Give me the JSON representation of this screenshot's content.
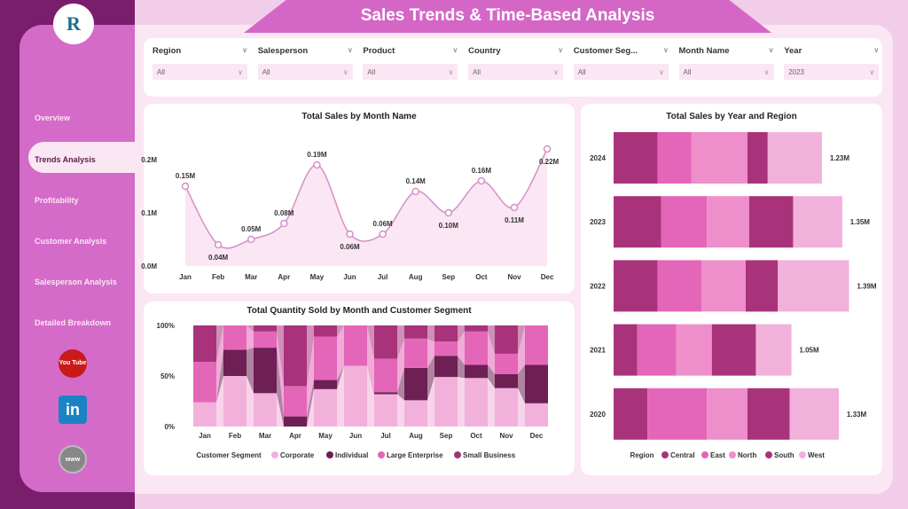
{
  "header": {
    "title": "Sales Trends & Time-Based Analysis",
    "logo_text": "R"
  },
  "sidebar": {
    "items": [
      {
        "label": "Overview"
      },
      {
        "label": "Trends Analysis",
        "active": true
      },
      {
        "label": "Profitability"
      },
      {
        "label": "Customer Analysis"
      },
      {
        "label": "Salesperson Analysis"
      },
      {
        "label": "Detailed Breakdown"
      }
    ],
    "social": [
      {
        "icon": "youtube-icon",
        "label": "You Tube"
      },
      {
        "icon": "linkedin-icon",
        "label": "in"
      },
      {
        "icon": "globe-icon",
        "label": "www"
      }
    ]
  },
  "filters": [
    {
      "label": "Region",
      "value": "All"
    },
    {
      "label": "Salesperson",
      "value": "All"
    },
    {
      "label": "Product",
      "value": "All"
    },
    {
      "label": "Country",
      "value": "All"
    },
    {
      "label": "Customer Seg...",
      "value": "All"
    },
    {
      "label": "Month Name",
      "value": "All"
    },
    {
      "label": "Year",
      "value": "2023"
    }
  ],
  "colors": {
    "sidebar": "#d46bc9",
    "dark": "#791d6c",
    "central": "#a8337b",
    "east": "#e466b8",
    "north": "#ee8fcc",
    "south": "#a8337b",
    "west": "#f2b1da",
    "corporate": "#f2b1da",
    "individual": "#6e1f54",
    "large_enterprise": "#e466b8",
    "small_business": "#a8337b",
    "line": "#d48fc8"
  },
  "chart_data": [
    {
      "type": "line",
      "title": "Total Sales by Month Name",
      "categories": [
        "Jan",
        "Feb",
        "Mar",
        "Apr",
        "May",
        "Jun",
        "Jul",
        "Aug",
        "Sep",
        "Oct",
        "Nov",
        "Dec"
      ],
      "values": [
        0.15,
        0.04,
        0.05,
        0.08,
        0.19,
        0.06,
        0.06,
        0.14,
        0.1,
        0.16,
        0.11,
        0.22
      ],
      "labels": [
        "0.15M",
        "0.04M",
        "0.05M",
        "0.08M",
        "0.19M",
        "0.06M",
        "0.06M",
        "0.14M",
        "0.10M",
        "0.16M",
        "0.11M",
        "0.22M"
      ],
      "yticks": [
        "0.0M",
        "0.1M",
        "0.2M"
      ],
      "ylim": [
        0,
        0.2
      ],
      "unit": "M"
    },
    {
      "type": "ribbon",
      "title": "Total Quantity Sold by Month and Customer Segment",
      "categories": [
        "Jan",
        "Feb",
        "Mar",
        "Apr",
        "May",
        "Jun",
        "Jul",
        "Aug",
        "Sep",
        "Oct",
        "Nov",
        "Dec"
      ],
      "yticks": [
        "0%",
        "50%",
        "100%"
      ],
      "legend_title": "Customer Segment",
      "series": [
        {
          "name": "Corporate",
          "values": [
            24,
            50,
            33,
            0,
            37,
            60,
            32,
            26,
            49,
            48,
            38,
            23
          ]
        },
        {
          "name": "Individual",
          "values": [
            0,
            26,
            45,
            10,
            9,
            0,
            2,
            32,
            21,
            13,
            14,
            38
          ]
        },
        {
          "name": "Large Enterprise",
          "values": [
            40,
            24,
            16,
            30,
            43,
            40,
            33,
            29,
            14,
            33,
            20,
            39
          ]
        },
        {
          "name": "Small Business",
          "values": [
            36,
            0,
            6,
            60,
            11,
            0,
            33,
            13,
            16,
            6,
            28,
            0
          ]
        }
      ]
    },
    {
      "type": "bar",
      "title": "Total Sales by Year and Region",
      "categories": [
        "2024",
        "2023",
        "2022",
        "2021",
        "2020"
      ],
      "legend_title": "Region",
      "totals": [
        "1.23M",
        "1.35M",
        "1.39M",
        "1.05M",
        "1.33M"
      ],
      "series": [
        {
          "name": "Central",
          "values": [
            0.26,
            0.28,
            0.26,
            0.14,
            0.2
          ]
        },
        {
          "name": "East",
          "values": [
            0.2,
            0.27,
            0.26,
            0.23,
            0.35
          ]
        },
        {
          "name": "North",
          "values": [
            0.33,
            0.25,
            0.26,
            0.21,
            0.24
          ]
        },
        {
          "name": "South",
          "values": [
            0.12,
            0.26,
            0.19,
            0.26,
            0.25
          ]
        },
        {
          "name": "West",
          "values": [
            0.32,
            0.29,
            0.42,
            0.21,
            0.29
          ]
        }
      ]
    }
  ]
}
